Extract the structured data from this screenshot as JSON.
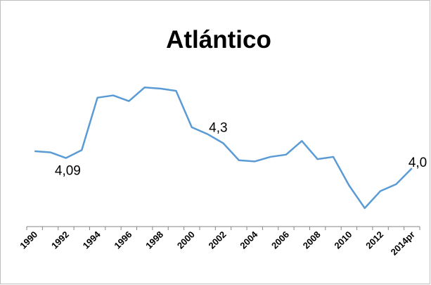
{
  "chart_data": {
    "type": "line",
    "title": "Atlántico",
    "categories": [
      "1990",
      null,
      "1992",
      null,
      "1994",
      null,
      "1996",
      null,
      "1998",
      null,
      "2000",
      null,
      "2002",
      null,
      "2004",
      null,
      "2006",
      null,
      "2008",
      null,
      "2010",
      null,
      "2012",
      null,
      "2014pr"
    ],
    "series": [
      {
        "name": "Atlántico",
        "color": "#5b9bd5",
        "values": [
          4.15,
          4.14,
          4.09,
          4.16,
          4.62,
          4.64,
          4.59,
          4.71,
          4.7,
          4.68,
          4.36,
          4.3,
          4.22,
          4.07,
          4.06,
          4.1,
          4.12,
          4.24,
          4.08,
          4.1,
          3.85,
          3.65,
          3.8,
          3.86,
          4.0
        ],
        "value_labels": [
          null,
          null,
          "4,09",
          null,
          null,
          null,
          null,
          null,
          null,
          null,
          null,
          "4,3",
          null,
          null,
          null,
          null,
          null,
          null,
          null,
          null,
          null,
          null,
          null,
          null,
          "4,0"
        ]
      }
    ],
    "ylim": [
      3.5,
      4.9
    ]
  }
}
